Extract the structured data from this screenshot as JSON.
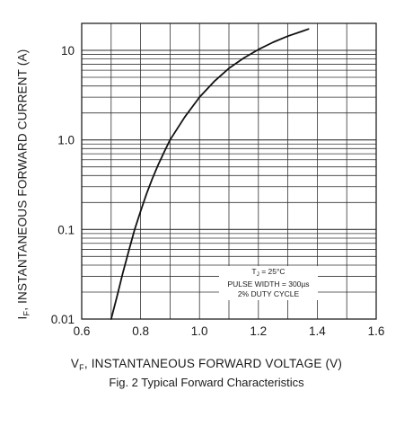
{
  "chart_data": {
    "type": "line",
    "title": "",
    "caption": "Fig. 2 Typical Forward Characteristics",
    "xlabel": {
      "symbol": "V",
      "subscript": "F",
      "text": ", INSTANTANEOUS FORWARD VOLTAGE (V)"
    },
    "ylabel": {
      "symbol": "I",
      "subscript": "F",
      "text": ", INSTANTANEOUS FORWARD CURRENT (A)"
    },
    "xlim": [
      0.6,
      1.6
    ],
    "ylim": [
      0.01,
      20
    ],
    "yscale": "log",
    "grid": true,
    "x_ticks": [
      "0.6",
      "0.8",
      "1.0",
      "1.2",
      "1.4",
      "1.6"
    ],
    "y_ticks": [
      {
        "value": 0.01,
        "label": "0.01"
      },
      {
        "value": 0.1,
        "label": "0.1"
      },
      {
        "value": 1,
        "label": "1.0"
      },
      {
        "value": 10,
        "label": "10"
      }
    ],
    "annotation": {
      "line1_symbol": "T",
      "line1_subscript": "J",
      "line1_text": " = 25°C",
      "line2": "PULSE WIDTH = 300µs",
      "line3": "2% DUTY CYCLE"
    },
    "series": [
      {
        "x": [
          0.7,
          0.72,
          0.74,
          0.76,
          0.78,
          0.8,
          0.82,
          0.84,
          0.86,
          0.88,
          0.9,
          0.95,
          1.0,
          1.05,
          1.1,
          1.15,
          1.2,
          1.25,
          1.3,
          1.35,
          1.37
        ],
        "y": [
          0.01,
          0.018,
          0.033,
          0.058,
          0.1,
          0.16,
          0.25,
          0.37,
          0.53,
          0.73,
          1.0,
          1.8,
          3.0,
          4.5,
          6.3,
          8.2,
          10.2,
          12.3,
          14.4,
          16.4,
          17.3
        ]
      }
    ]
  }
}
